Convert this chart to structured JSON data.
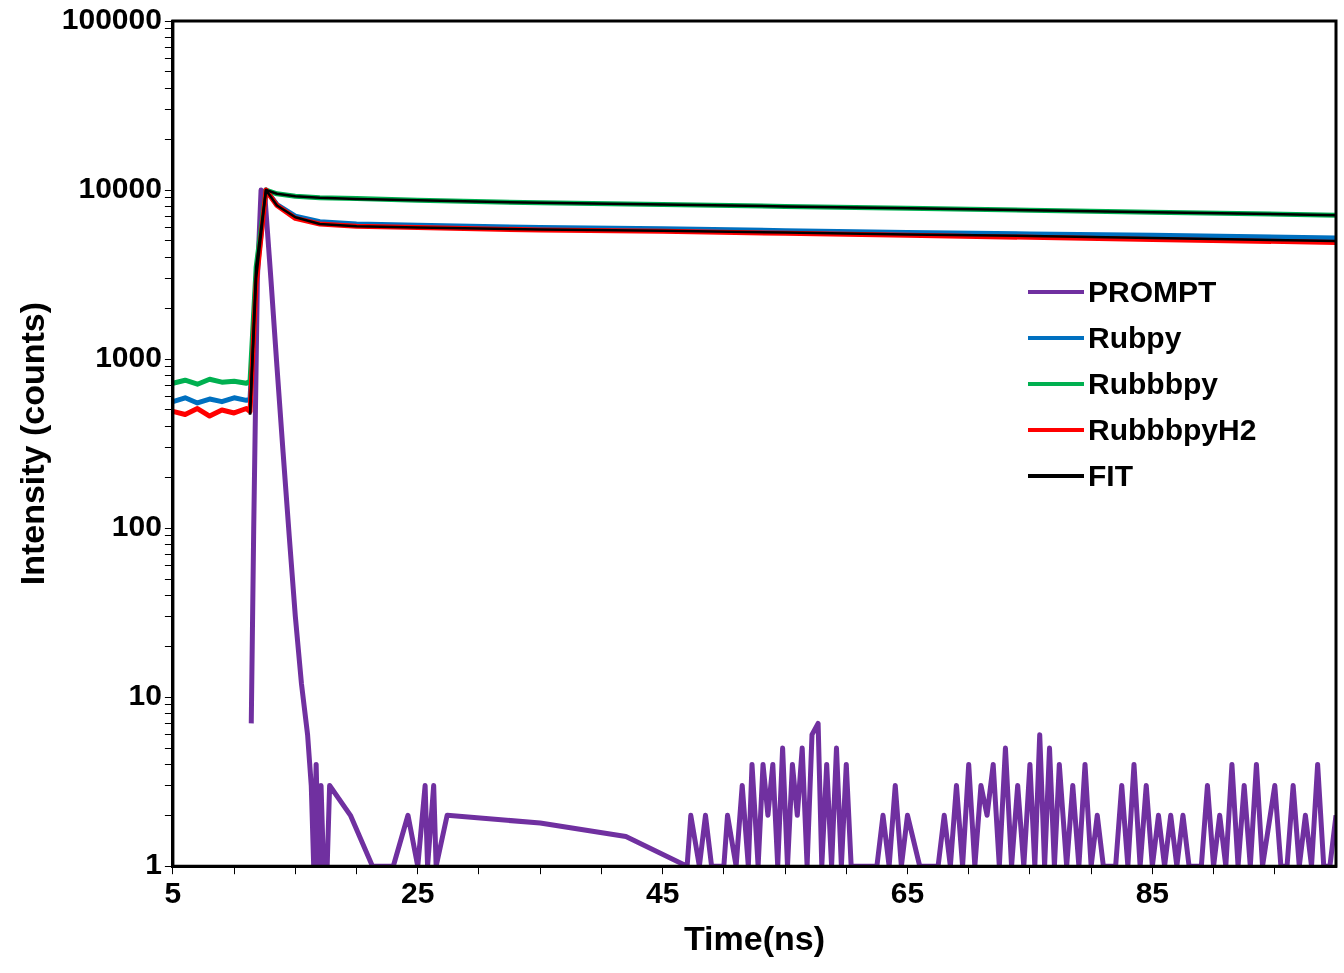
{
  "chart_data": {
    "type": "line",
    "xlabel": "Time(ns)",
    "ylabel": "Intensity (counts)",
    "log": "y",
    "grid": false,
    "legend": "right",
    "marker": "none",
    "line_style": "solid",
    "xlim": [
      5,
      100
    ],
    "xticks": [
      5,
      {
        "value": 10,
        "label": null
      },
      {
        "value": 15,
        "label": null
      },
      {
        "value": 20,
        "label": null
      },
      25,
      {
        "value": 30,
        "label": null
      },
      {
        "value": 35,
        "label": null
      },
      {
        "value": 40,
        "label": null
      },
      45,
      {
        "value": 50,
        "label": null
      },
      {
        "value": 55,
        "label": null
      },
      {
        "value": 60,
        "label": null
      },
      65,
      {
        "value": 70,
        "label": null
      },
      {
        "value": 75,
        "label": null
      },
      {
        "value": 80,
        "label": null
      },
      85,
      {
        "value": 90,
        "label": null
      },
      {
        "value": 95,
        "label": null
      }
    ],
    "ylim": [
      1,
      100000
    ],
    "yticks": [
      1,
      {
        "value": 2,
        "label": null
      },
      {
        "value": 3,
        "label": null
      },
      {
        "value": 4,
        "label": null
      },
      {
        "value": 5,
        "label": null
      },
      {
        "value": 6,
        "label": null
      },
      {
        "value": 7,
        "label": null
      },
      {
        "value": 8,
        "label": null
      },
      {
        "value": 9,
        "label": null
      },
      10,
      {
        "value": 20,
        "label": null
      },
      {
        "value": 30,
        "label": null
      },
      {
        "value": 40,
        "label": null
      },
      {
        "value": 50,
        "label": null
      },
      {
        "value": 60,
        "label": null
      },
      {
        "value": 70,
        "label": null
      },
      {
        "value": 80,
        "label": null
      },
      {
        "value": 90,
        "label": null
      },
      100,
      {
        "value": 200,
        "label": null
      },
      {
        "value": 300,
        "label": null
      },
      {
        "value": 400,
        "label": null
      },
      {
        "value": 500,
        "label": null
      },
      {
        "value": 600,
        "label": null
      },
      {
        "value": 700,
        "label": null
      },
      {
        "value": 800,
        "label": null
      },
      {
        "value": 900,
        "label": null
      },
      1000,
      {
        "value": 2000,
        "label": null
      },
      {
        "value": 3000,
        "label": null
      },
      {
        "value": 4000,
        "label": null
      },
      {
        "value": 5000,
        "label": null
      },
      {
        "value": 6000,
        "label": null
      },
      {
        "value": 7000,
        "label": null
      },
      {
        "value": 8000,
        "label": null
      },
      {
        "value": 9000,
        "label": null
      },
      10000,
      {
        "value": 20000,
        "label": null
      },
      {
        "value": 30000,
        "label": null
      },
      {
        "value": 40000,
        "label": null
      },
      {
        "value": 50000,
        "label": null
      },
      {
        "value": 60000,
        "label": null
      },
      {
        "value": 70000,
        "label": null
      },
      {
        "value": 80000,
        "label": null
      },
      {
        "value": 90000,
        "label": null
      },
      100000
    ],
    "series": [
      {
        "name": "PROMPT",
        "color": "#7030a0",
        "x": [
          11.4,
          11.6,
          11.9,
          12.2,
          12.5,
          13,
          13.5,
          14,
          14.5,
          15,
          15.5,
          16,
          16.3,
          16.5,
          16.7,
          16.9,
          17.1,
          17.3,
          17.6,
          17.8,
          19.5,
          21.3,
          23,
          24.2,
          25,
          25.6,
          25.8,
          26.3,
          26.5,
          27.4,
          35,
          42,
          47,
          47.3,
          48,
          48.5,
          49,
          50,
          50.3,
          51,
          51.5,
          52,
          52.3,
          52.8,
          53.2,
          53.6,
          54,
          54.4,
          54.8,
          55.2,
          55.6,
          56,
          56.4,
          56.8,
          57.2,
          57.7,
          58,
          58.4,
          58.8,
          59.2,
          59.6,
          60,
          60.4,
          61,
          62.5,
          63,
          63.5,
          64,
          64.5,
          65,
          66,
          67.5,
          68,
          68.5,
          69,
          69.5,
          70,
          70.5,
          71,
          71.5,
          72,
          72.5,
          73,
          73.5,
          74,
          74.5,
          75,
          75.4,
          75.8,
          76.2,
          76.6,
          77,
          77.4,
          78,
          78.5,
          79,
          79.5,
          80,
          80.5,
          81,
          82,
          82.5,
          83,
          83.5,
          84,
          84.5,
          85,
          85.5,
          86,
          86.5,
          87,
          87.5,
          88,
          89,
          89.5,
          90,
          90.5,
          91,
          91.5,
          92,
          92.5,
          93,
          93.5,
          94,
          95,
          95.5,
          96,
          96.5,
          97,
          97.5,
          98,
          98.5,
          99,
          99.5,
          100
        ],
        "values": [
          7,
          100,
          3000,
          10000,
          9500,
          3000,
          900,
          280,
          90,
          30,
          12,
          6,
          3,
          1,
          4,
          1,
          3,
          1,
          1,
          3,
          2,
          1,
          1,
          2,
          1,
          3,
          1,
          3,
          1,
          2,
          1.8,
          1.5,
          1,
          2,
          1,
          2,
          1,
          1,
          2,
          1,
          3,
          1,
          4,
          1,
          4,
          2,
          4,
          1,
          5,
          1,
          4,
          2,
          5,
          1,
          6,
          7,
          1,
          4,
          1,
          5,
          1,
          4,
          1,
          1,
          1,
          2,
          1,
          3,
          1,
          2,
          1,
          1,
          2,
          1,
          3,
          1,
          4,
          1,
          3,
          2,
          4,
          1,
          5,
          1,
          3,
          1,
          4,
          1,
          6,
          1,
          5,
          1,
          4,
          1,
          3,
          1,
          4,
          1,
          2,
          1,
          1,
          3,
          1,
          4,
          1,
          3,
          1,
          2,
          1,
          2,
          1,
          2,
          1,
          1,
          3,
          1,
          2,
          1,
          4,
          1,
          3,
          1,
          4,
          1,
          3,
          1,
          1,
          3,
          1,
          2,
          1,
          4,
          1,
          1,
          2
        ]
      },
      {
        "name": "Rubpy",
        "color": "#0070c0",
        "x": [
          5,
          6,
          7,
          8,
          9,
          10,
          11,
          11.3,
          11.8,
          12.6,
          13.5,
          15,
          17,
          20,
          25,
          35,
          45,
          55,
          65,
          75,
          85,
          100
        ],
        "values": [
          560,
          590,
          550,
          580,
          560,
          590,
          570,
          580,
          3000,
          10000,
          8200,
          7000,
          6500,
          6300,
          6200,
          6000,
          5900,
          5750,
          5600,
          5500,
          5400,
          5200
        ]
      },
      {
        "name": "Rubbbpy",
        "color": "#00b050",
        "x": [
          5,
          6,
          7,
          8,
          9,
          10,
          11,
          11.3,
          11.8,
          12.6,
          13.5,
          15,
          17,
          20,
          25,
          35,
          45,
          55,
          65,
          75,
          85,
          100
        ],
        "values": [
          720,
          750,
          710,
          760,
          730,
          740,
          720,
          740,
          3500,
          10000,
          9500,
          9200,
          9000,
          8900,
          8700,
          8400,
          8200,
          8000,
          7800,
          7600,
          7400,
          7100
        ]
      },
      {
        "name": "RubbbpyH2",
        "color": "#ff0000",
        "x": [
          5,
          6,
          7,
          8,
          9,
          10,
          11,
          11.3,
          11.8,
          12.6,
          13.5,
          15,
          17,
          20,
          25,
          35,
          45,
          55,
          65,
          75,
          85,
          100
        ],
        "values": [
          490,
          470,
          510,
          460,
          500,
          480,
          510,
          490,
          2800,
          10000,
          8100,
          6800,
          6300,
          6100,
          6000,
          5800,
          5700,
          5550,
          5400,
          5250,
          5100,
          4900
        ]
      },
      {
        "name": "FIT",
        "color": "#000000",
        "x": [
          11.3,
          11.8,
          12.6,
          13.5,
          15,
          17,
          20,
          25,
          35,
          45,
          55,
          65,
          75,
          85,
          100
        ],
        "values": [
          470,
          3000,
          10000,
          8100,
          6900,
          6300,
          6100,
          6000,
          5850,
          5750,
          5600,
          5450,
          5350,
          5200,
          5000
        ]
      },
      {
        "color": "#000000",
        "x": [
          11.3,
          11.8,
          12.6,
          13.5,
          15,
          17,
          20,
          25,
          35,
          45,
          55,
          65,
          75,
          85,
          100
        ],
        "values": [
          470,
          3500,
          10000,
          9500,
          9200,
          9000,
          8850,
          8700,
          8400,
          8200,
          8000,
          7800,
          7600,
          7400,
          7100
        ]
      }
    ]
  }
}
